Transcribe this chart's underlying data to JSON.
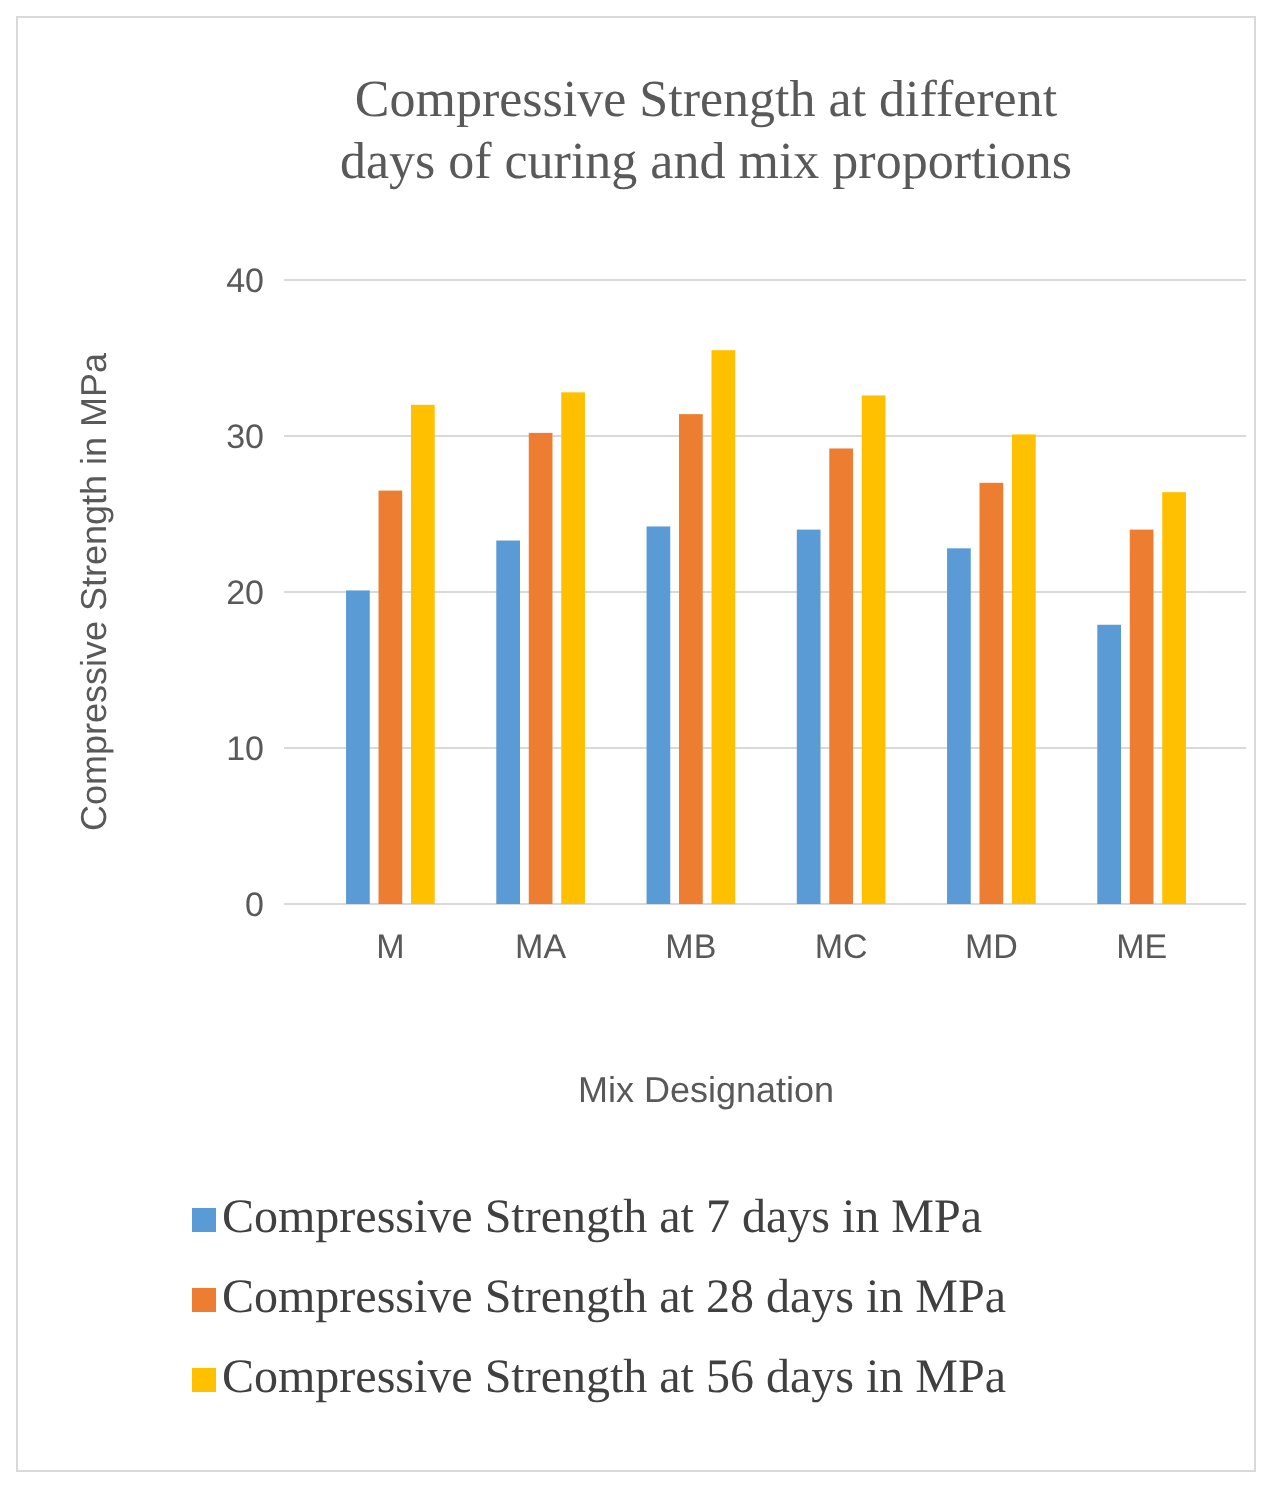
{
  "chart_data": {
    "type": "bar",
    "title": "Compressive Strength at different days of curing and mix proportions",
    "xlabel": "Mix Designation",
    "ylabel": "Compressive Strength in MPa",
    "categories": [
      "M",
      "MA",
      "MB",
      "MC",
      "MD",
      "ME"
    ],
    "series": [
      {
        "name": "Compressive Strength at 7 days in MPa",
        "color": "#5b9bd5",
        "values": [
          20.1,
          23.3,
          24.2,
          24.0,
          22.8,
          17.9
        ]
      },
      {
        "name": "Compressive Strength at 28 days in MPa",
        "color": "#ed7d31",
        "values": [
          26.5,
          30.2,
          31.4,
          29.2,
          27.0,
          24.0
        ]
      },
      {
        "name": "Compressive Strength at 56 days in MPa",
        "color": "#ffc000",
        "values": [
          32.0,
          32.8,
          35.5,
          32.6,
          30.1,
          26.4
        ]
      }
    ],
    "ylim": [
      0,
      40
    ],
    "yticks": [
      0,
      10,
      20,
      30,
      40
    ],
    "grid": "y",
    "legend": "bottom"
  }
}
